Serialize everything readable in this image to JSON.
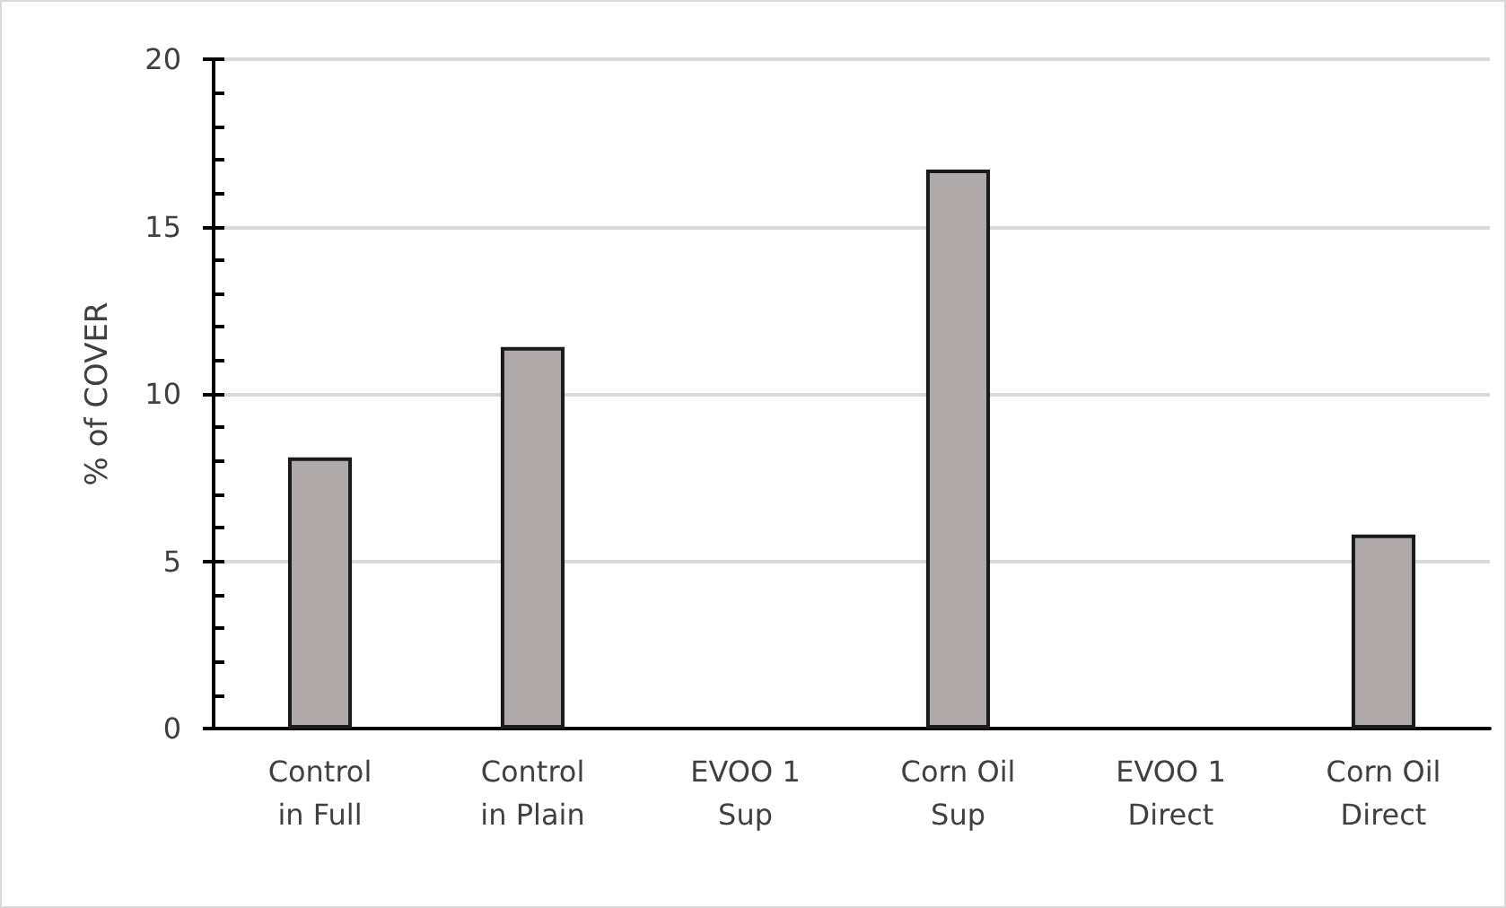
{
  "chart_data": {
    "type": "bar",
    "ylabel": "% of COVER",
    "categories": [
      "Control\nin Full",
      "Control\nin Plain",
      "EVOO 1\nSup",
      "Corn Oil\nSup",
      "EVOO 1\nDirect",
      "Corn Oil\nDirect"
    ],
    "values": [
      8.1,
      11.4,
      0,
      16.7,
      0,
      5.8
    ],
    "color": "#afaaa9",
    "ylim": [
      0,
      20
    ],
    "yticks": [
      0,
      {
        "value": 1,
        "label": null
      },
      {
        "value": 2,
        "label": null
      },
      {
        "value": 3,
        "label": null
      },
      {
        "value": 4,
        "label": null
      },
      5,
      {
        "value": 6,
        "label": null
      },
      {
        "value": 7,
        "label": null
      },
      {
        "value": 8,
        "label": null
      },
      {
        "value": 9,
        "label": null
      },
      10,
      {
        "value": 11,
        "label": null
      },
      {
        "value": 12,
        "label": null
      },
      {
        "value": 13,
        "label": null
      },
      {
        "value": 14,
        "label": null
      },
      15,
      {
        "value": 16,
        "label": null
      },
      {
        "value": 17,
        "label": null
      },
      {
        "value": 18,
        "label": null
      },
      {
        "value": 19,
        "label": null
      },
      20
    ],
    "grid": "y"
  }
}
